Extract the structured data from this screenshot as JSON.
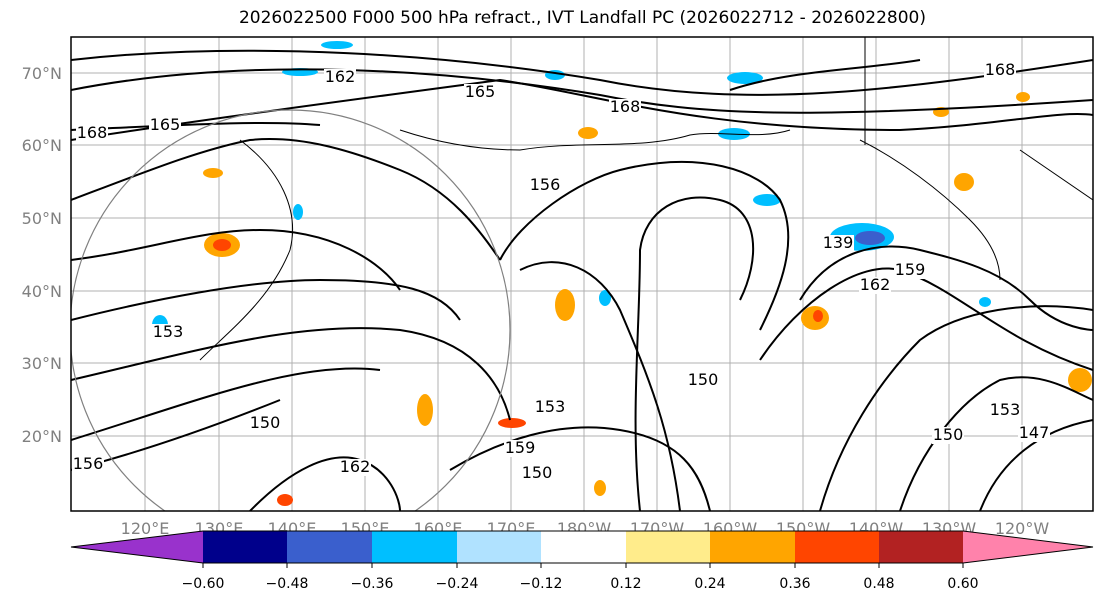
{
  "title": "2026022500 F000 500 hPa refract., IVT Landfall PC (2026022712 - 2026022800)",
  "lat_labels": [
    "70°N",
    "60°N",
    "50°N",
    "40°N",
    "30°N",
    "20°N"
  ],
  "lon_labels": [
    "120°E",
    "130°E",
    "140°E",
    "150°E",
    "160°E",
    "170°E",
    "180°W",
    "170°W",
    "160°W",
    "150°W",
    "140°W",
    "130°W",
    "120°W"
  ],
  "colorbar": {
    "colors": [
      "#9932cc",
      "#00008b",
      "#3a5fcd",
      "#00bfff",
      "#b0e2ff",
      "#ffffff",
      "#ffec8b",
      "#ffa500",
      "#ff4500",
      "#b22222",
      "#ff82ab"
    ],
    "ticks": [
      "−0.60",
      "−0.48",
      "−0.36",
      "−0.24",
      "−0.12",
      "0.12",
      "0.24",
      "0.36",
      "0.48",
      "0.60"
    ]
  },
  "contour_labels": [
    "162",
    "165",
    "168",
    "165",
    "168",
    "168",
    "156",
    "153",
    "150",
    "159",
    "147",
    "139",
    "162",
    "159",
    "150",
    "153",
    "150",
    "150",
    "153",
    "156",
    "162"
  ]
}
